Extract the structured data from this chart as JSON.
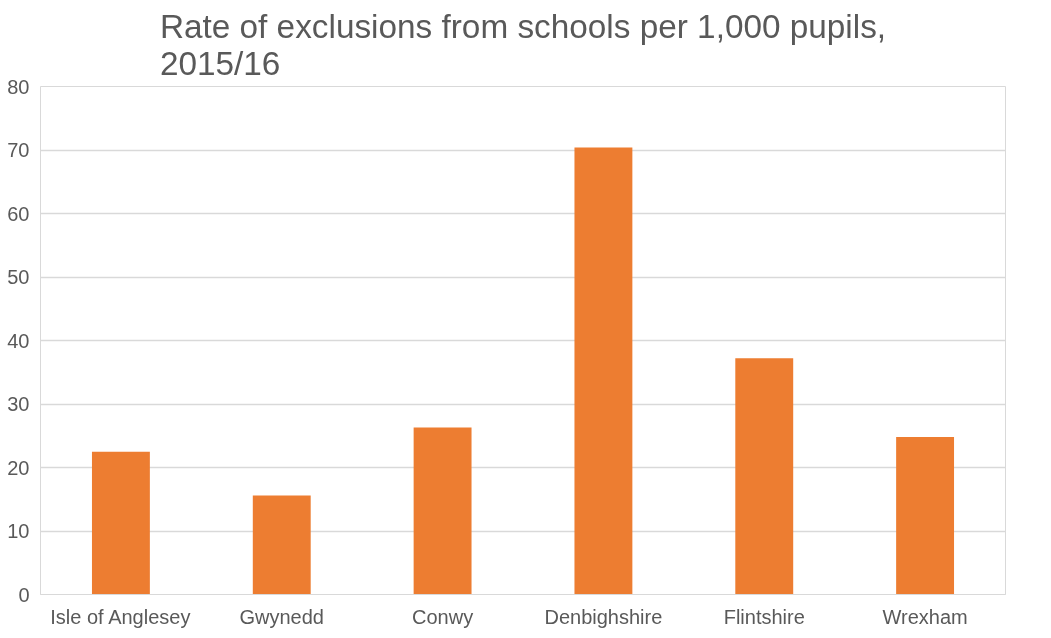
{
  "chart_data": {
    "type": "bar",
    "title": "Rate of exclusions from schools per 1,000 pupils, 2015/16",
    "categories": [
      "Isle of Anglesey",
      "Gwynedd",
      "Conwy",
      "Denbighshire",
      "Flintshire",
      "Wrexham"
    ],
    "values": [
      22.5,
      15.6,
      26.3,
      70.4,
      37.2,
      24.8
    ],
    "color": "#ed7d31",
    "ylim": [
      0,
      80
    ],
    "yticks": [
      0,
      10,
      20,
      30,
      40,
      50,
      60,
      70,
      80
    ],
    "grid": "y"
  }
}
